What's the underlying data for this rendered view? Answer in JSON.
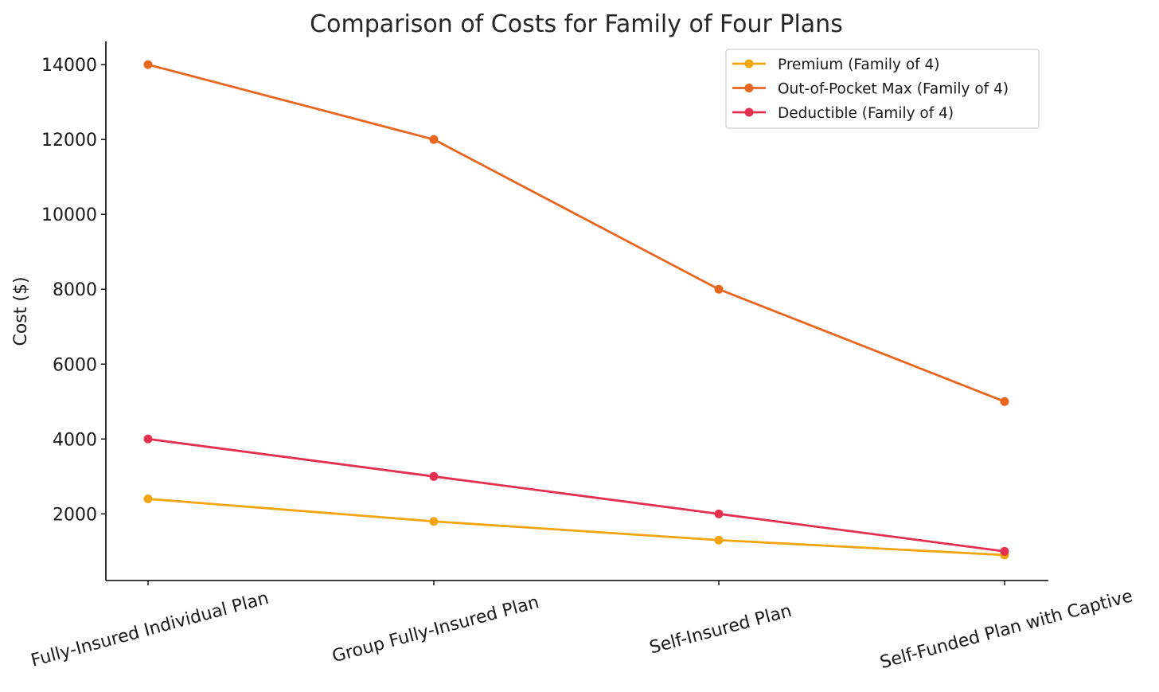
{
  "chart_data": {
    "type": "line",
    "title": "Comparison of Costs for Family of Four Plans",
    "xlabel": "",
    "ylabel": "Cost ($)",
    "categories": [
      "Fully-Insured Individual Plan",
      "Group Fully-Insured Plan",
      "Self-Insured Plan",
      "Self-Funded Plan with Captive"
    ],
    "yticks": [
      2000,
      4000,
      6000,
      8000,
      10000,
      12000,
      14000
    ],
    "ylim": [
      220,
      14620
    ],
    "grid": false,
    "legend_position": "top-right",
    "series": [
      {
        "name": "Premium (Family of 4)",
        "color": "#f2a50e",
        "values": [
          2400,
          1800,
          1300,
          900
        ]
      },
      {
        "name": "Out-of-Pocket Max (Family of 4)",
        "color": "#e8661f",
        "values": [
          14000,
          12000,
          8000,
          5000
        ]
      },
      {
        "name": "Deductible (Family of 4)",
        "color": "#e3304f",
        "values": [
          4000,
          3000,
          2000,
          1000
        ]
      }
    ]
  }
}
